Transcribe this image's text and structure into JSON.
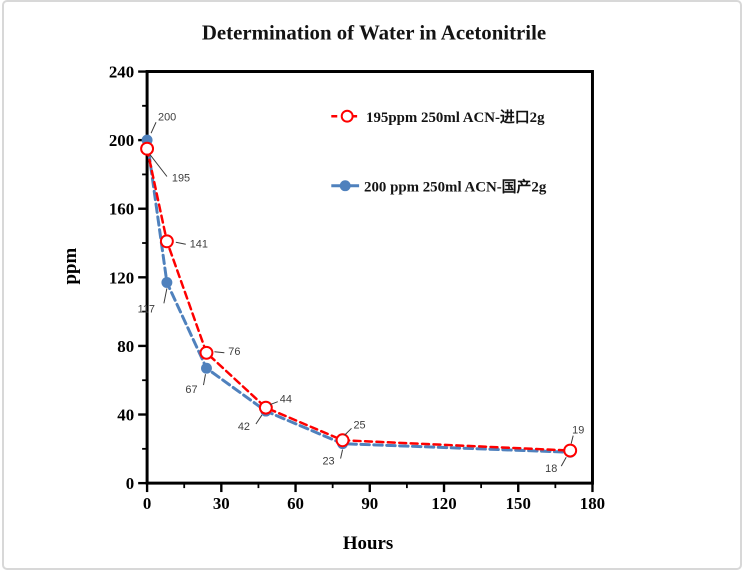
{
  "chart_data": {
    "type": "line",
    "title": "Determination of Water in Acetonitrile",
    "xlabel": "Hours",
    "ylabel": "ppm",
    "x": [
      0,
      8,
      24,
      48,
      79,
      171
    ],
    "series": [
      {
        "name": "195ppm  250ml ACN-进口2g",
        "values": [
          195,
          141,
          76,
          44,
          25,
          19
        ],
        "color": "#fe0000",
        "line": "dashed",
        "marker": "open-circle"
      },
      {
        "name": "200 ppm 250ml ACN-国产2g",
        "values": [
          200,
          117,
          67,
          42,
          23,
          18
        ],
        "color": "#4f81bd",
        "line": "dashed",
        "marker": "filled-circle"
      }
    ],
    "xlim": [
      0,
      180
    ],
    "ylim": [
      0,
      240
    ],
    "x_major_ticks": [
      0,
      30,
      60,
      90,
      120,
      150,
      180
    ],
    "y_major_ticks": [
      0,
      40,
      80,
      120,
      160,
      200,
      240
    ],
    "x_minor_step": 15,
    "y_minor_step": 20,
    "grid": false,
    "legend_position": "inside-top-center-right",
    "data_labels_shown": true,
    "frame_color": "#000000"
  }
}
